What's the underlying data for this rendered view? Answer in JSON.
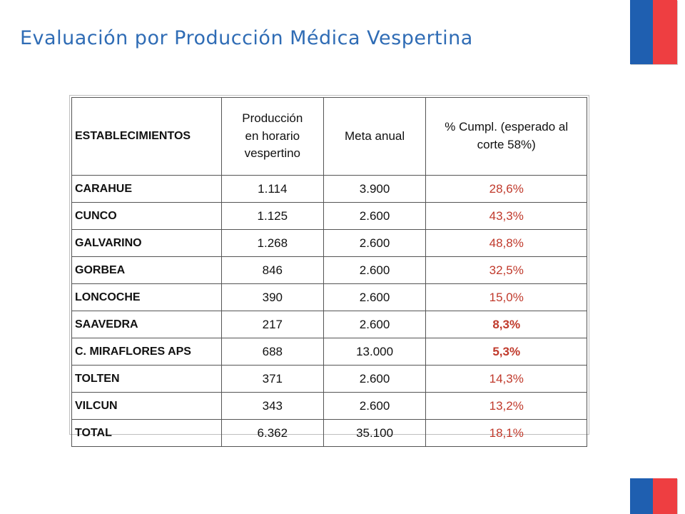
{
  "title": "Evaluación por Producción Médica Vespertina",
  "colors": {
    "title": "#2f6cb5",
    "flag_blue": "#1f5fb0",
    "flag_red": "#ee3e41",
    "pct_text": "#c0392b"
  },
  "table": {
    "headers": {
      "establecimientos": "ESTABLECIMIENTOS",
      "produccion_line1": "Producción",
      "produccion_line2": "en horario",
      "produccion_line3": "vespertino",
      "meta": "Meta anual",
      "cumpl_line1": "% Cumpl. (esperado al",
      "cumpl_line2": "corte 58%)"
    },
    "rows": [
      {
        "name": "CARAHUE",
        "produccion": "1.114",
        "meta": "3.900",
        "cumpl": "28,6%",
        "bold": false
      },
      {
        "name": "CUNCO",
        "produccion": "1.125",
        "meta": "2.600",
        "cumpl": "43,3%",
        "bold": false
      },
      {
        "name": "GALVARINO",
        "produccion": "1.268",
        "meta": "2.600",
        "cumpl": "48,8%",
        "bold": false
      },
      {
        "name": "GORBEA",
        "produccion": "846",
        "meta": "2.600",
        "cumpl": "32,5%",
        "bold": false
      },
      {
        "name": "LONCOCHE",
        "produccion": "390",
        "meta": "2.600",
        "cumpl": "15,0%",
        "bold": false
      },
      {
        "name": "SAAVEDRA",
        "produccion": "217",
        "meta": "2.600",
        "cumpl": "8,3%",
        "bold": true
      },
      {
        "name": "C. MIRAFLORES APS",
        "produccion": "688",
        "meta": "13.000",
        "cumpl": "5,3%",
        "bold": true
      },
      {
        "name": "TOLTEN",
        "produccion": "371",
        "meta": "2.600",
        "cumpl": "14,3%",
        "bold": false
      },
      {
        "name": "VILCUN",
        "produccion": "343",
        "meta": "2.600",
        "cumpl": "13,2%",
        "bold": false
      },
      {
        "name": "TOTAL",
        "produccion": "6.362",
        "meta": "35.100",
        "cumpl": "18,1%",
        "bold": false
      }
    ]
  }
}
